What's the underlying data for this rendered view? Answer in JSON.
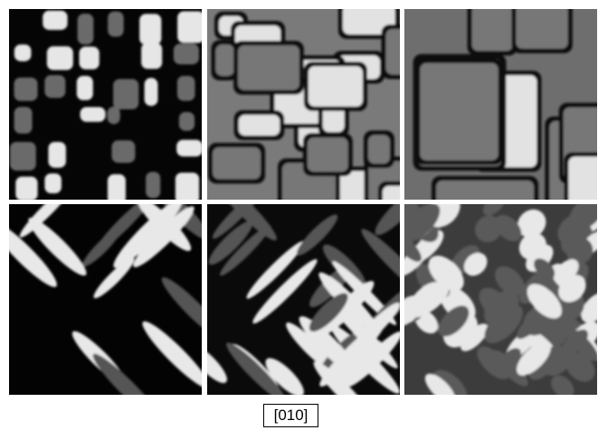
{
  "caption": {
    "label": "[010] →"
  }
}
